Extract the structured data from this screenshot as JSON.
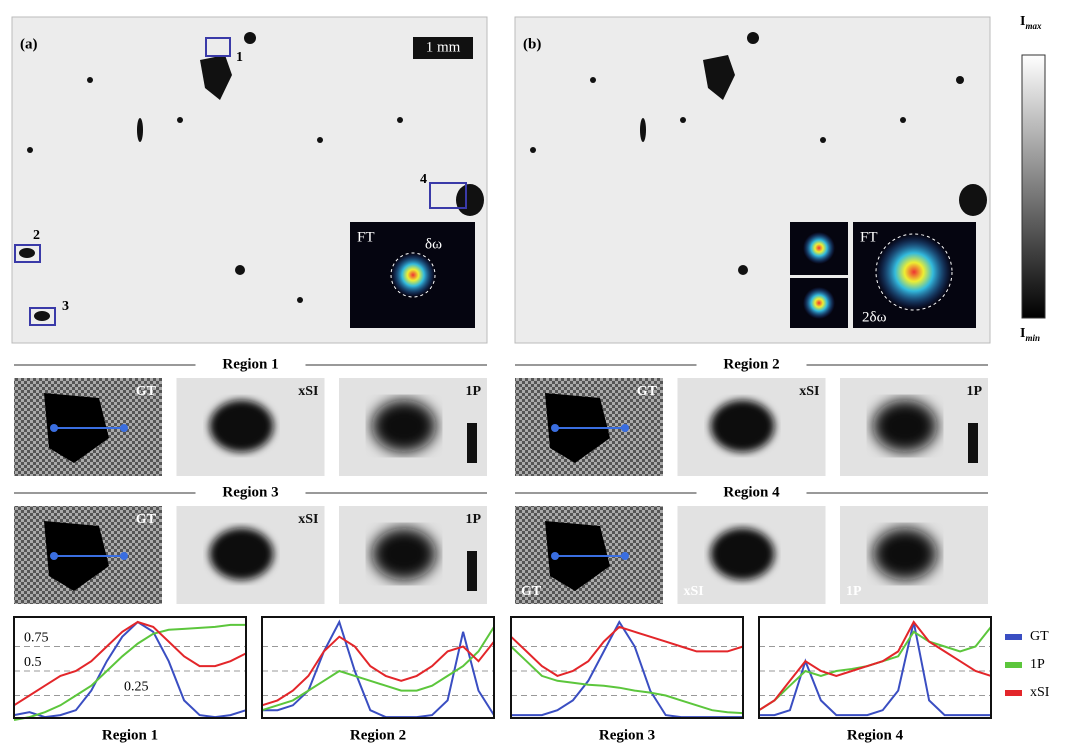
{
  "figure": {
    "panel_a": {
      "label": "(a)",
      "scale_bar": "1 mm",
      "markers": [
        "1",
        "2",
        "3",
        "4"
      ],
      "inset_label": "FT",
      "inset_width": "δω"
    },
    "panel_b": {
      "label": "(b)",
      "inset_label": "FT",
      "inset_width": "2δω"
    },
    "colorbar": {
      "max": {
        "symbol": "I",
        "subscript": "max"
      },
      "min": {
        "symbol": "I",
        "subscript": "min"
      }
    },
    "regions": [
      {
        "title": "Region 1",
        "tiles": [
          "GT",
          "xSI",
          "1P"
        ]
      },
      {
        "title": "Region 2",
        "tiles": [
          "GT",
          "xSI",
          "1P"
        ]
      },
      {
        "title": "Region 3",
        "tiles": [
          "GT",
          "xSI",
          "1P"
        ]
      },
      {
        "title": "Region 4",
        "tiles": [
          "GT",
          "xSI",
          "1P"
        ]
      }
    ]
  },
  "chart_data": [
    {
      "type": "line",
      "xlabel": "Region 1",
      "ylim": [
        0,
        1
      ],
      "yticks": [
        0.75,
        0.5,
        0.25
      ],
      "series": [
        {
          "name": "GT",
          "color": "#3a4ec2",
          "values": [
            0.05,
            0.08,
            0.03,
            0.05,
            0.1,
            0.3,
            0.6,
            0.85,
            1.0,
            0.9,
            0.6,
            0.2,
            0.05,
            0.03,
            0.05,
            0.1
          ]
        },
        {
          "name": "1P",
          "color": "#5cc63c",
          "values": [
            0.0,
            0.03,
            0.08,
            0.15,
            0.25,
            0.35,
            0.5,
            0.65,
            0.78,
            0.88,
            0.92,
            0.93,
            0.94,
            0.95,
            0.97,
            0.97
          ]
        },
        {
          "name": "xSI",
          "color": "#e3262a",
          "values": [
            0.15,
            0.25,
            0.35,
            0.45,
            0.5,
            0.6,
            0.75,
            0.9,
            1.0,
            0.95,
            0.8,
            0.65,
            0.55,
            0.55,
            0.6,
            0.68
          ]
        }
      ]
    },
    {
      "type": "line",
      "xlabel": "Region 2",
      "ylim": [
        0,
        1
      ],
      "hlines": [
        0.75,
        0.5,
        0.25
      ],
      "series": [
        {
          "color": "#3a4ec2",
          "values": [
            0.1,
            0.1,
            0.15,
            0.3,
            0.7,
            1.0,
            0.5,
            0.1,
            0.03,
            0.03,
            0.03,
            0.05,
            0.2,
            0.9,
            0.3,
            0.05
          ]
        },
        {
          "color": "#5cc63c",
          "values": [
            0.1,
            0.15,
            0.2,
            0.3,
            0.4,
            0.5,
            0.45,
            0.4,
            0.35,
            0.3,
            0.3,
            0.35,
            0.45,
            0.55,
            0.7,
            0.95
          ]
        },
        {
          "color": "#e3262a",
          "values": [
            0.15,
            0.2,
            0.3,
            0.45,
            0.7,
            0.85,
            0.75,
            0.55,
            0.45,
            0.4,
            0.45,
            0.55,
            0.7,
            0.75,
            0.6,
            0.8
          ]
        }
      ]
    },
    {
      "type": "line",
      "xlabel": "Region 3",
      "ylim": [
        0,
        1
      ],
      "hlines": [
        0.75,
        0.5,
        0.25
      ],
      "series": [
        {
          "color": "#3a4ec2",
          "values": [
            0.05,
            0.05,
            0.05,
            0.1,
            0.2,
            0.4,
            0.7,
            1.0,
            0.75,
            0.3,
            0.05,
            0.03,
            0.03,
            0.03,
            0.03,
            0.03
          ]
        },
        {
          "color": "#5cc63c",
          "values": [
            0.75,
            0.6,
            0.45,
            0.4,
            0.38,
            0.36,
            0.35,
            0.33,
            0.3,
            0.28,
            0.25,
            0.2,
            0.15,
            0.1,
            0.08,
            0.07
          ]
        },
        {
          "color": "#e3262a",
          "values": [
            0.85,
            0.7,
            0.55,
            0.45,
            0.5,
            0.6,
            0.8,
            0.95,
            0.9,
            0.85,
            0.8,
            0.75,
            0.7,
            0.7,
            0.7,
            0.75
          ]
        }
      ]
    },
    {
      "type": "line",
      "xlabel": "Region 4",
      "ylim": [
        0,
        1
      ],
      "hlines": [
        0.75,
        0.5,
        0.25
      ],
      "series": [
        {
          "color": "#3a4ec2",
          "values": [
            0.05,
            0.05,
            0.1,
            0.6,
            0.2,
            0.05,
            0.05,
            0.05,
            0.1,
            0.3,
            1.0,
            0.2,
            0.05,
            0.05,
            0.05,
            0.05
          ]
        },
        {
          "color": "#5cc63c",
          "values": [
            0.1,
            0.2,
            0.35,
            0.5,
            0.45,
            0.5,
            0.52,
            0.55,
            0.6,
            0.65,
            0.9,
            0.8,
            0.75,
            0.7,
            0.75,
            0.95
          ]
        },
        {
          "color": "#e3262a",
          "values": [
            0.1,
            0.2,
            0.4,
            0.6,
            0.5,
            0.45,
            0.5,
            0.55,
            0.6,
            0.7,
            1.0,
            0.8,
            0.7,
            0.6,
            0.5,
            0.45
          ]
        }
      ]
    }
  ]
}
